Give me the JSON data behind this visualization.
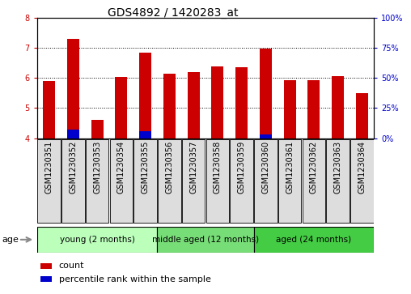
{
  "title": "GDS4892 / 1420283_at",
  "samples": [
    "GSM1230351",
    "GSM1230352",
    "GSM1230353",
    "GSM1230354",
    "GSM1230355",
    "GSM1230356",
    "GSM1230357",
    "GSM1230358",
    "GSM1230359",
    "GSM1230360",
    "GSM1230361",
    "GSM1230362",
    "GSM1230363",
    "GSM1230364"
  ],
  "count_values": [
    5.9,
    7.3,
    4.62,
    6.02,
    6.85,
    6.15,
    6.18,
    6.38,
    6.35,
    6.98,
    5.93,
    5.93,
    6.05,
    5.5
  ],
  "percentile_values": [
    0.05,
    7.0,
    0.05,
    0.05,
    6.0,
    0.05,
    0.05,
    0.05,
    0.05,
    3.0,
    0.05,
    0.05,
    0.05,
    0.05
  ],
  "count_color": "#cc0000",
  "percentile_color": "#0000cc",
  "ylim_left": [
    4,
    8
  ],
  "ylim_right": [
    0,
    100
  ],
  "yticks_left": [
    4,
    5,
    6,
    7,
    8
  ],
  "yticks_right": [
    0,
    25,
    50,
    75,
    100
  ],
  "ytick_labels_right": [
    "0%",
    "25%",
    "50%",
    "75%",
    "100%"
  ],
  "groups": [
    {
      "label": "young (2 months)",
      "start": 0,
      "end": 4
    },
    {
      "label": "middle aged (12 months)",
      "start": 5,
      "end": 8
    },
    {
      "label": "aged (24 months)",
      "start": 9,
      "end": 13
    }
  ],
  "group_colors": [
    "#bbffbb",
    "#77dd77",
    "#44cc44"
  ],
  "age_label": "age",
  "legend_count": "count",
  "legend_percentile": "percentile rank within the sample",
  "bar_width": 0.5,
  "count_color_legend": "#cc0000",
  "percentile_color_legend": "#0000cc",
  "tick_label_color_left": "#cc0000",
  "tick_label_color_right": "#0000cc",
  "title_fontsize": 10,
  "tick_fontsize": 7,
  "group_label_fontsize": 7.5,
  "legend_fontsize": 8
}
